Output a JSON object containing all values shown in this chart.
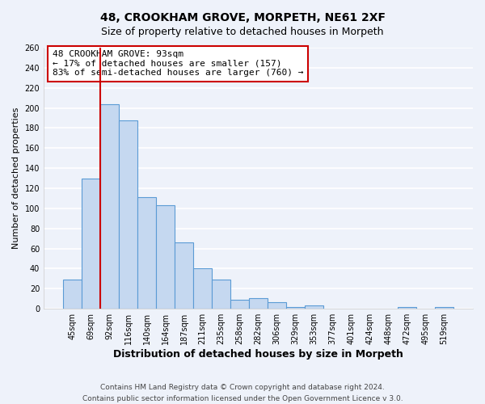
{
  "title": "48, CROOKHAM GROVE, MORPETH, NE61 2XF",
  "subtitle": "Size of property relative to detached houses in Morpeth",
  "xlabel": "Distribution of detached houses by size in Morpeth",
  "ylabel": "Number of detached properties",
  "categories": [
    "45sqm",
    "69sqm",
    "92sqm",
    "116sqm",
    "140sqm",
    "164sqm",
    "187sqm",
    "211sqm",
    "235sqm",
    "258sqm",
    "282sqm",
    "306sqm",
    "329sqm",
    "353sqm",
    "377sqm",
    "401sqm",
    "424sqm",
    "448sqm",
    "472sqm",
    "495sqm",
    "519sqm"
  ],
  "values": [
    29,
    130,
    204,
    188,
    111,
    103,
    66,
    40,
    29,
    9,
    11,
    7,
    2,
    3,
    0,
    0,
    0,
    0,
    2,
    0,
    2
  ],
  "bar_color": "#c5d8f0",
  "bar_edge_color": "#5b9bd5",
  "vline_bar_index": 2,
  "vline_color": "#cc0000",
  "annotation_text": "48 CROOKHAM GROVE: 93sqm\n← 17% of detached houses are smaller (157)\n83% of semi-detached houses are larger (760) →",
  "annotation_box_color": "#ffffff",
  "annotation_box_edge_color": "#cc0000",
  "ylim": [
    0,
    260
  ],
  "yticks": [
    0,
    20,
    40,
    60,
    80,
    100,
    120,
    140,
    160,
    180,
    200,
    220,
    240,
    260
  ],
  "background_color": "#eef2fa",
  "grid_color": "#ffffff",
  "footer_line1": "Contains HM Land Registry data © Crown copyright and database right 2024.",
  "footer_line2": "Contains public sector information licensed under the Open Government Licence v 3.0.",
  "title_fontsize": 10,
  "xlabel_fontsize": 9,
  "ylabel_fontsize": 8,
  "tick_fontsize": 7,
  "footer_fontsize": 6.5,
  "annotation_fontsize": 8
}
